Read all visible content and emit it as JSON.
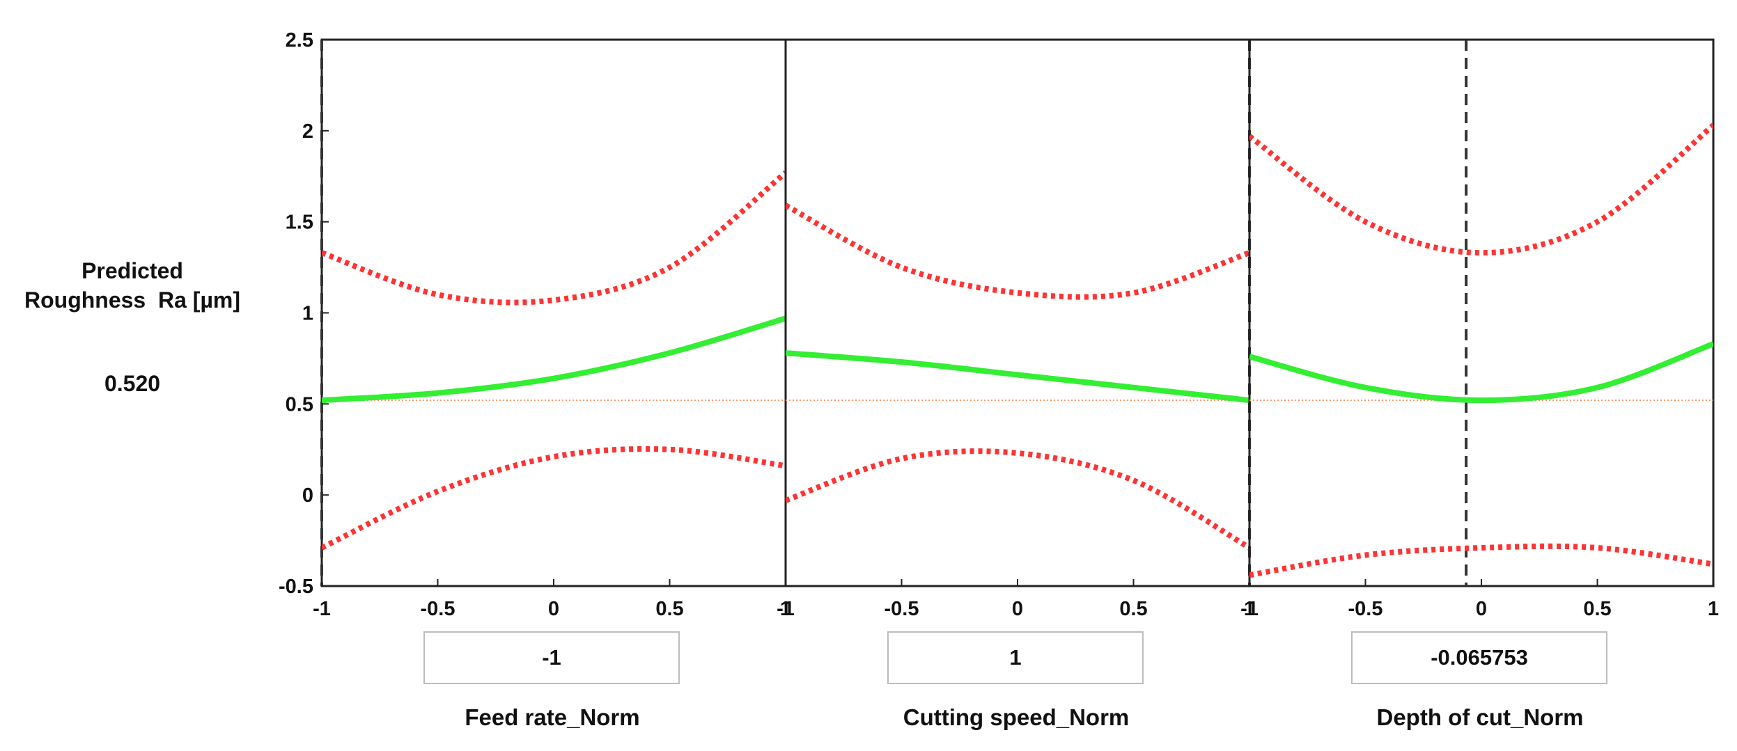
{
  "chart_data": {
    "type": "line",
    "title": "",
    "ylabel": "Predicted Roughness Ra [µm]",
    "ylabel_lines": [
      "Predicted",
      "Roughness  Ra [µm]"
    ],
    "predicted_value": "0.520",
    "ylim": [
      -0.5,
      2.5
    ],
    "yticks": [
      -0.5,
      0,
      0.5,
      1,
      1.5,
      2,
      2.5
    ],
    "ytick_labels": [
      "-0.5",
      "0",
      "0.5",
      "1",
      "1.5",
      "2",
      "2.5"
    ],
    "xticks": [
      -1,
      -0.5,
      0,
      0.5,
      1
    ],
    "xtick_labels": [
      "-1",
      "-0.5",
      "0",
      "0.5",
      "1"
    ],
    "reference_line_y": 0.52,
    "colors": {
      "prediction": "#33ee33",
      "bounds": "#ff3333",
      "reference": "#ff9966",
      "cursor": "#333333"
    },
    "panels": [
      {
        "factor": "Feed rate_Norm",
        "setting": "-1",
        "setting_value": -1,
        "x": [
          -1,
          -0.5,
          0,
          0.5,
          1
        ],
        "series": [
          {
            "name": "Predicted Ra",
            "style": "solid",
            "values": [
              0.52,
              0.56,
              0.64,
              0.78,
              0.97
            ]
          },
          {
            "name": "Upper bound",
            "style": "dotted",
            "values": [
              1.33,
              1.1,
              1.07,
              1.25,
              1.77
            ]
          },
          {
            "name": "Lower bound",
            "style": "dotted",
            "values": [
              -0.29,
              0.02,
              0.21,
              0.25,
              0.16
            ]
          }
        ]
      },
      {
        "factor": "Cutting speed_Norm",
        "setting": "1",
        "setting_value": 1,
        "x": [
          -1,
          -0.5,
          0,
          0.5,
          1
        ],
        "series": [
          {
            "name": "Predicted Ra",
            "style": "solid",
            "values": [
              0.78,
              0.73,
              0.66,
              0.59,
              0.52
            ]
          },
          {
            "name": "Upper bound",
            "style": "dotted",
            "values": [
              1.59,
              1.25,
              1.11,
              1.11,
              1.33
            ]
          },
          {
            "name": "Lower bound",
            "style": "dotted",
            "values": [
              -0.03,
              0.2,
              0.23,
              0.08,
              -0.29
            ]
          }
        ]
      },
      {
        "factor": "Depth of cut_Norm",
        "setting": "-0.065753",
        "setting_value": -0.065753,
        "x": [
          -1,
          -0.5,
          0,
          0.5,
          1
        ],
        "series": [
          {
            "name": "Predicted Ra",
            "style": "solid",
            "values": [
              0.76,
              0.59,
              0.52,
              0.59,
              0.83
            ]
          },
          {
            "name": "Upper bound",
            "style": "dotted",
            "values": [
              1.97,
              1.5,
              1.33,
              1.5,
              2.03
            ]
          },
          {
            "name": "Lower bound",
            "style": "dotted",
            "values": [
              -0.44,
              -0.33,
              -0.29,
              -0.29,
              -0.38
            ]
          }
        ]
      }
    ]
  }
}
